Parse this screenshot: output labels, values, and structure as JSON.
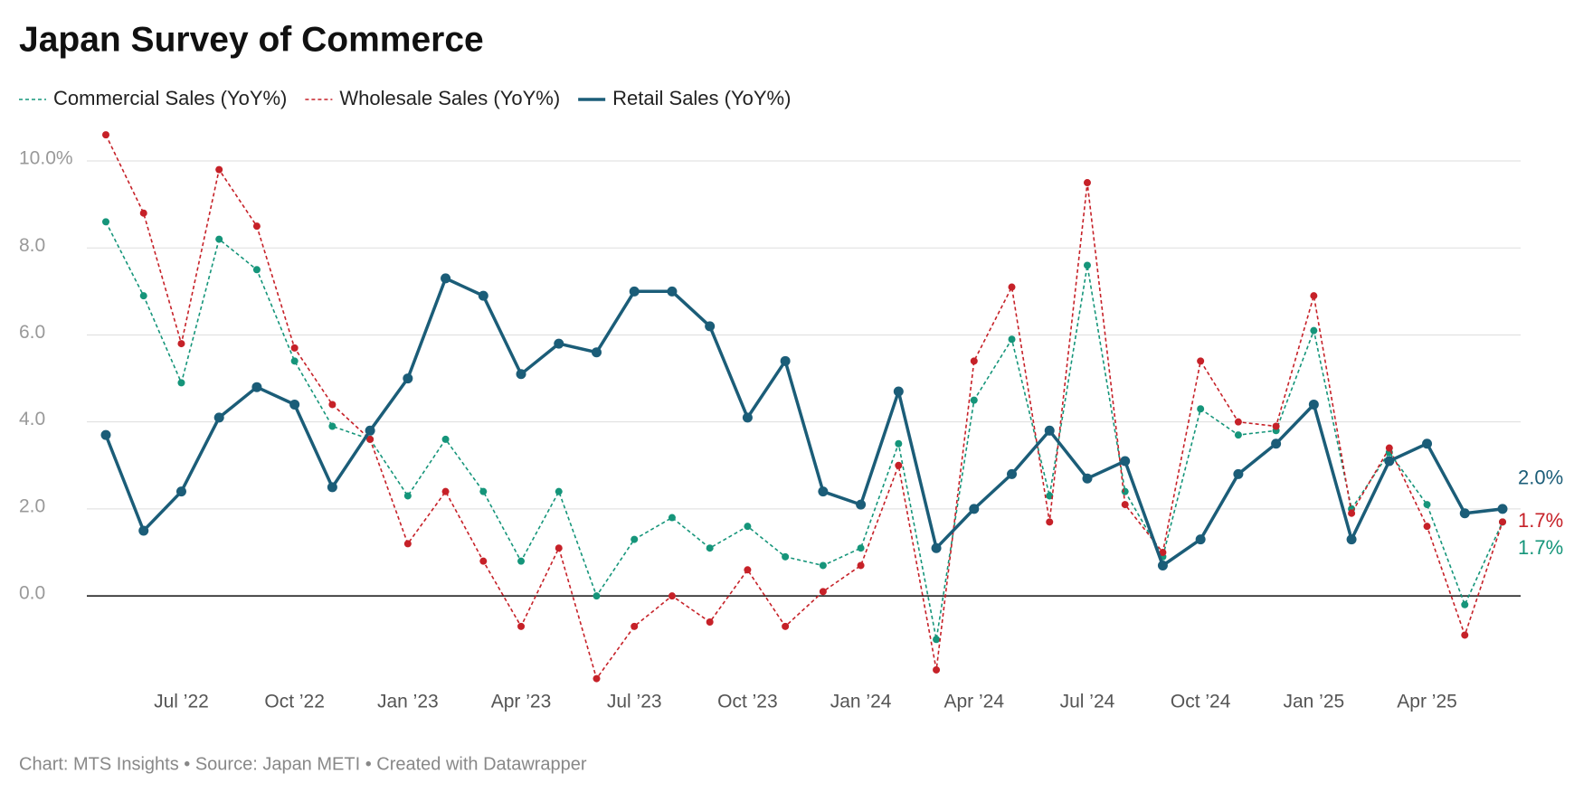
{
  "chart_data": {
    "type": "line",
    "title": "Japan Survey of Commerce",
    "source": "Chart: MTS Insights • Source: Japan METI • Created with Datawrapper",
    "categories": [
      null,
      null,
      "Jul ’22",
      null,
      null,
      "Oct ’22",
      null,
      null,
      "Jan ’23",
      null,
      null,
      "Apr ’23",
      null,
      null,
      "Jul ’23",
      null,
      null,
      "Oct ’23",
      null,
      null,
      "Jan ’24",
      null,
      null,
      "Apr ’24",
      null,
      null,
      "Jul ’24",
      null,
      null,
      "Oct ’24",
      null,
      null,
      "Jan ’25",
      null,
      null,
      "Apr ’25",
      null,
      null
    ],
    "series": [
      {
        "name": "Commercial Sales (YoY%)",
        "color": "#15957a",
        "style": "dashed",
        "values": [
          8.6,
          6.9,
          4.9,
          8.2,
          7.5,
          5.4,
          3.9,
          3.6,
          2.3,
          3.6,
          2.4,
          0.8,
          2.4,
          0.0,
          1.3,
          1.8,
          1.1,
          1.6,
          0.9,
          0.7,
          1.1,
          3.5,
          -1.0,
          4.5,
          5.9,
          2.3,
          7.6,
          2.4,
          0.9,
          4.3,
          3.7,
          3.8,
          6.1,
          2.0,
          3.3,
          2.1,
          -0.2,
          1.7
        ],
        "value_labels": [
          null,
          null,
          null,
          null,
          null,
          null,
          null,
          null,
          null,
          null,
          null,
          null,
          null,
          null,
          null,
          null,
          null,
          null,
          null,
          null,
          null,
          null,
          null,
          null,
          null,
          null,
          null,
          null,
          null,
          null,
          null,
          null,
          null,
          null,
          null,
          null,
          null,
          "1.7%"
        ]
      },
      {
        "name": "Wholesale Sales (YoY%)",
        "color": "#c62128",
        "style": "dashed",
        "values": [
          10.6,
          8.8,
          5.8,
          9.8,
          8.5,
          5.7,
          4.4,
          3.6,
          1.2,
          2.4,
          0.8,
          -0.7,
          1.1,
          -1.9,
          -0.7,
          0.0,
          -0.6,
          0.6,
          -0.7,
          0.1,
          0.7,
          3.0,
          -1.7,
          5.4,
          7.1,
          1.7,
          9.5,
          2.1,
          1.0,
          5.4,
          4.0,
          3.9,
          6.9,
          1.9,
          3.4,
          1.6,
          -0.9,
          1.7
        ],
        "value_labels": [
          null,
          null,
          null,
          null,
          null,
          null,
          null,
          null,
          null,
          null,
          null,
          null,
          null,
          null,
          null,
          null,
          null,
          null,
          null,
          null,
          null,
          null,
          null,
          null,
          null,
          null,
          null,
          null,
          null,
          null,
          null,
          null,
          null,
          null,
          null,
          null,
          null,
          "1.7%"
        ]
      },
      {
        "name": "Retail Sales (YoY%)",
        "color": "#1b5d78",
        "style": "solid",
        "values": [
          3.7,
          1.5,
          2.4,
          4.1,
          4.8,
          4.4,
          2.5,
          3.8,
          5.0,
          7.3,
          6.9,
          5.1,
          5.8,
          5.6,
          7.0,
          7.0,
          6.2,
          4.1,
          5.4,
          2.4,
          2.1,
          4.7,
          1.1,
          2.0,
          2.8,
          3.8,
          2.7,
          3.1,
          0.7,
          1.3,
          2.8,
          3.5,
          4.4,
          1.3,
          3.1,
          3.5,
          1.9,
          2.0
        ],
        "value_labels": [
          null,
          null,
          null,
          null,
          null,
          null,
          null,
          null,
          null,
          null,
          null,
          null,
          null,
          null,
          null,
          null,
          null,
          null,
          null,
          null,
          null,
          null,
          null,
          null,
          null,
          null,
          null,
          null,
          null,
          null,
          null,
          null,
          null,
          null,
          null,
          null,
          null,
          "2.0%"
        ]
      }
    ],
    "ylim": [
      -2.2,
      10.8
    ],
    "yticks": [
      {
        "value": 10,
        "label": "10.0%"
      },
      {
        "value": 8,
        "label": "8.0"
      },
      {
        "value": 6,
        "label": "6.0"
      },
      {
        "value": 4,
        "label": "4.0"
      },
      {
        "value": 2,
        "label": "2.0"
      },
      {
        "value": 0,
        "label": "0.0"
      }
    ],
    "grid": true
  }
}
